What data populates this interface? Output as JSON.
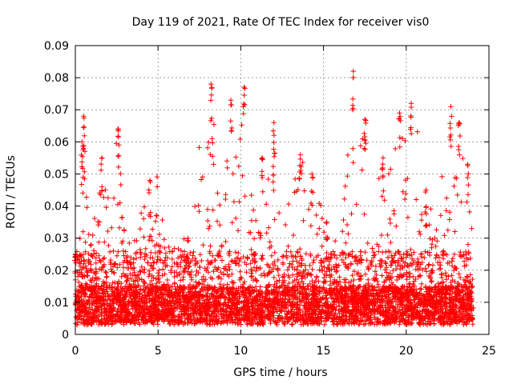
{
  "chart_data": {
    "type": "scatter",
    "title": "Day 119 of 2021, Rate Of TEC Index for receiver vis0",
    "xlabel": "GPS time / hours",
    "ylabel": "ROTI / TECUs",
    "xlim": [
      0,
      25
    ],
    "ylim": [
      0,
      0.09
    ],
    "xticks": [
      "0",
      "5",
      "10",
      "15",
      "20",
      "25"
    ],
    "xtick_values": [
      0,
      5,
      10,
      15,
      20,
      25
    ],
    "yticks": [
      "0",
      "0.01",
      "0.02",
      "0.03",
      "0.04",
      "0.05",
      "0.06",
      "0.07",
      "0.08",
      "0.09"
    ],
    "ytick_values": [
      0,
      0.01,
      0.02,
      0.03,
      0.04,
      0.05,
      0.06,
      0.07,
      0.08,
      0.09
    ],
    "grid": true,
    "marker": "+",
    "color": "#ff0000",
    "data_range_hours": [
      0,
      24
    ],
    "envelope_hours": [
      0,
      0.3,
      0.5,
      1.0,
      1.5,
      1.8,
      2.0,
      2.3,
      2.6,
      3.0,
      3.5,
      4.0,
      4.5,
      5.0,
      5.5,
      6.0,
      6.5,
      7.0,
      7.5,
      7.8,
      8.2,
      8.6,
      9.0,
      9.3,
      9.6,
      10.0,
      10.5,
      11.0,
      11.5,
      12.0,
      12.5,
      13.0,
      13.5,
      14.0,
      14.5,
      15.0,
      15.5,
      16.0,
      16.5,
      16.8,
      17.2,
      17.6,
      18.0,
      18.5,
      19.0,
      19.5,
      20.0,
      20.3,
      20.7,
      21.0,
      21.5,
      22.0,
      22.5,
      23.0,
      23.5,
      24.0
    ],
    "envelope_roti": [
      0.025,
      0.04,
      0.068,
      0.03,
      0.05,
      0.059,
      0.045,
      0.06,
      0.064,
      0.03,
      0.028,
      0.052,
      0.04,
      0.053,
      0.03,
      0.029,
      0.03,
      0.03,
      0.067,
      0.045,
      0.078,
      0.05,
      0.04,
      0.073,
      0.06,
      0.077,
      0.045,
      0.04,
      0.055,
      0.066,
      0.05,
      0.045,
      0.056,
      0.057,
      0.045,
      0.04,
      0.03,
      0.031,
      0.06,
      0.082,
      0.06,
      0.067,
      0.05,
      0.055,
      0.05,
      0.07,
      0.06,
      0.072,
      0.065,
      0.045,
      0.04,
      0.042,
      0.071,
      0.066,
      0.053,
      0.035
    ],
    "sample_points": [
      [
        0.5,
        0.068
      ],
      [
        2.6,
        0.064
      ],
      [
        8.2,
        0.078
      ],
      [
        9.4,
        0.073
      ],
      [
        10.2,
        0.077
      ],
      [
        12.0,
        0.066
      ],
      [
        16.8,
        0.082
      ],
      [
        17.5,
        0.067
      ],
      [
        19.6,
        0.069
      ],
      [
        20.3,
        0.072
      ],
      [
        22.7,
        0.071
      ],
      [
        23.2,
        0.066
      ],
      [
        1.6,
        0.055
      ],
      [
        4.5,
        0.048
      ],
      [
        6.8,
        0.03
      ],
      [
        11.3,
        0.055
      ],
      [
        13.6,
        0.056
      ],
      [
        14.3,
        0.05
      ],
      [
        15.2,
        0.035
      ],
      [
        18.6,
        0.055
      ],
      [
        21.2,
        0.045
      ],
      [
        23.7,
        0.053
      ],
      [
        0.0,
        0.025
      ],
      [
        24.0,
        0.015
      ],
      [
        0.4,
        0.06
      ]
    ]
  }
}
